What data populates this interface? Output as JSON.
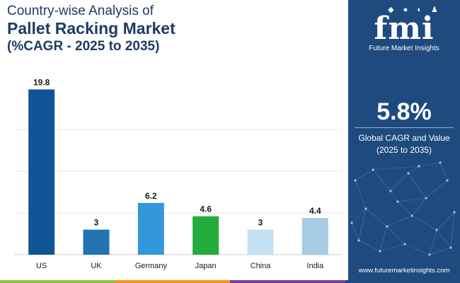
{
  "header": {
    "line1": "Country-wise Analysis of",
    "line2": "Pallet Racking Market",
    "line3": "(%CAGR - 2025 to 2035)"
  },
  "chart_data": {
    "type": "bar",
    "categories": [
      "US",
      "UK",
      "Germany",
      "Japan",
      "China",
      "India"
    ],
    "values": [
      19.8,
      3,
      6.2,
      4.6,
      3,
      4.4
    ],
    "value_labels": [
      "19.8",
      "3",
      "6.2",
      "4.6",
      "3",
      "4.4"
    ],
    "colors": [
      "#0f5596",
      "#2173b3",
      "#3397dc",
      "#22ad3c",
      "#c3e1f2",
      "#a7cbe3"
    ],
    "title": "",
    "xlabel": "",
    "ylabel": "",
    "ylim": [
      0,
      20
    ],
    "grid": true
  },
  "panel": {
    "logo_icons": "◆ ● ◐ ♟",
    "logo_text": "fmi",
    "logo_subtitle": "Future Market Insights",
    "kpi_value": "5.8%",
    "kpi_label_line1": "Global CAGR and Value",
    "kpi_label_line2": "(2025 to 2035)",
    "website": "www.futuremarketinsights.com"
  },
  "colors": {
    "panel_bg": "#1e4a7e",
    "title_text": "#1f3b63",
    "footer": [
      "#8cc63f",
      "#f7941d",
      "#7b3f98",
      "#1e4a7e"
    ]
  }
}
